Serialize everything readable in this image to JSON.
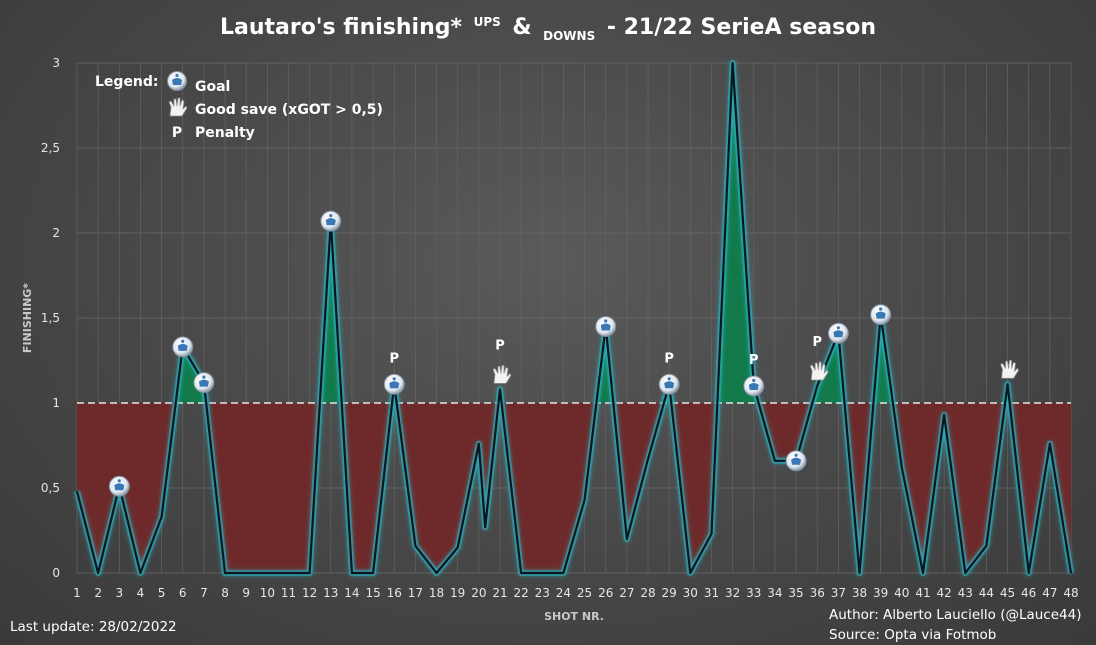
{
  "chart_data": {
    "type": "area",
    "title_parts": [
      "Lautaro's finishing*",
      "UPS",
      "&",
      "DOWNS",
      "- 21/22 SerieA season"
    ],
    "xlabel": "SHOT NR.",
    "ylabel": "FINISHING*",
    "ylim": [
      0,
      3
    ],
    "y_ticks": [
      "0",
      "0,5",
      "1",
      "1,5",
      "2",
      "2,5",
      "3"
    ],
    "threshold": 1,
    "grid": true,
    "x": [
      1,
      2,
      3,
      4,
      5,
      6,
      7,
      8,
      9,
      10,
      11,
      12,
      13,
      14,
      15,
      16,
      17,
      18,
      19,
      20,
      21,
      22,
      23,
      24,
      25,
      26,
      27,
      28,
      29,
      30,
      31,
      32,
      33,
      34,
      35,
      36,
      37,
      38,
      39,
      40,
      41,
      42,
      43,
      44,
      45,
      46,
      47,
      48
    ],
    "extra_points": [
      {
        "x": 20.3,
        "y": 0.27
      }
    ],
    "values": [
      0.48,
      0,
      0.51,
      0,
      0.33,
      1.33,
      1.12,
      0,
      0,
      0,
      0,
      0,
      2.07,
      0,
      0,
      1.11,
      0.16,
      0,
      0.15,
      0.76,
      1.08,
      0,
      0,
      0,
      0.43,
      1.45,
      0.2,
      0.67,
      1.11,
      0,
      0.23,
      3.0,
      1.1,
      0.66,
      0.66,
      1.1,
      1.41,
      0,
      1.52,
      0.62,
      0,
      0.93,
      0,
      0.16,
      1.11,
      0,
      0.76,
      0
    ],
    "colors": {
      "above": "#127a4a",
      "below": "#6e2a2a",
      "line": "#0b1620",
      "glow": "#2ab3c0"
    },
    "markers": {
      "goal": [
        3,
        6,
        7,
        13,
        16,
        26,
        29,
        33,
        35,
        37,
        39
      ],
      "save": [
        21,
        36,
        45
      ],
      "penalty": [
        16,
        21,
        29,
        33,
        36
      ]
    },
    "legend": {
      "title": "Legend:",
      "items": [
        {
          "icon": "ball-icon",
          "label": "Goal"
        },
        {
          "icon": "glove-icon",
          "label": "Good save (xGOT > 0,5)"
        },
        {
          "icon": "P",
          "label": "Penalty"
        }
      ]
    },
    "penalty_symbol": "P"
  },
  "footer": {
    "last_update": "Last update: 28/02/2022",
    "author": "Author: Alberto Lauciello (@Lauce44)",
    "source": "Source: Opta via Fotmob"
  }
}
